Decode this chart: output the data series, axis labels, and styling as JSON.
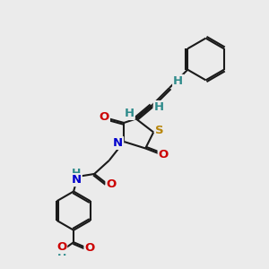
{
  "bg_color": "#ebebeb",
  "bond_color": "#1a1a1a",
  "N_color": "#0000cc",
  "O_color": "#cc0000",
  "S_color": "#b8860b",
  "H_color": "#2e8b8b",
  "lw": 1.5,
  "fs": 9.5,
  "sep": 0.055,
  "xlim": [
    0,
    10
  ],
  "ylim": [
    0,
    10
  ]
}
